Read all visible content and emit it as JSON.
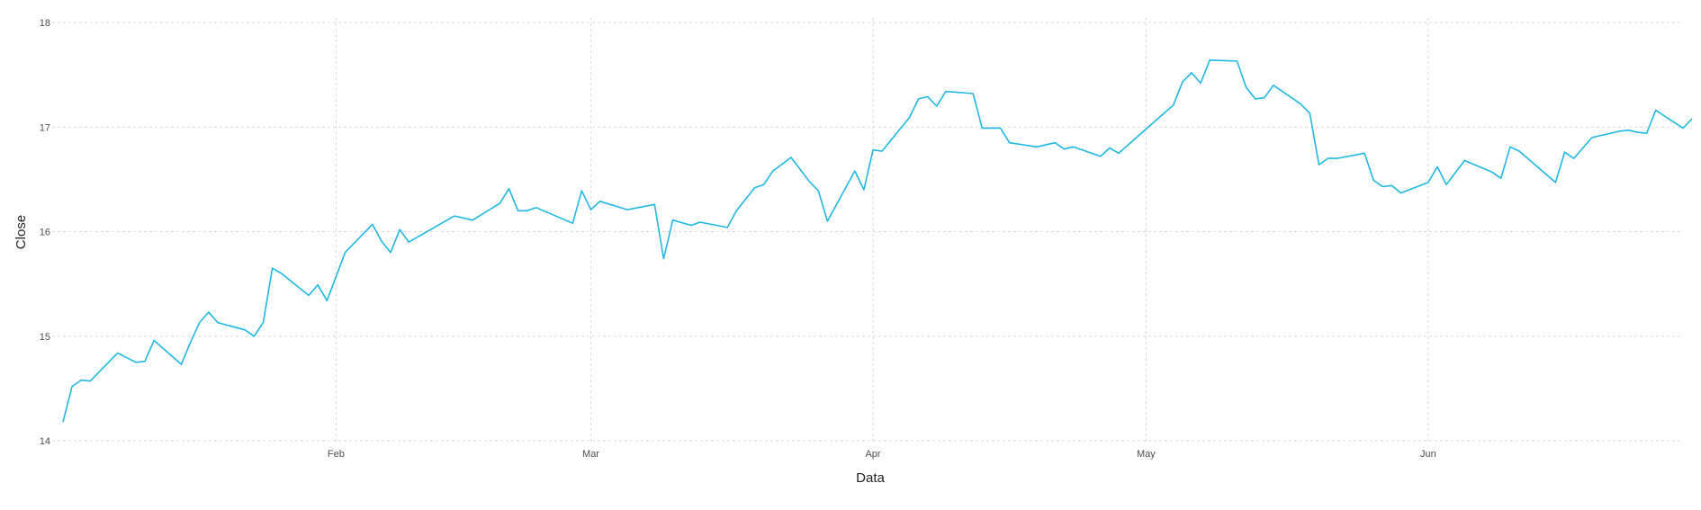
{
  "chart_data": {
    "type": "line",
    "xlabel": "Data",
    "ylabel": "Close",
    "ylim": [
      14,
      18
    ],
    "yticks": [
      "14",
      "15",
      "16",
      "17",
      "18"
    ],
    "xlim": [
      "2018-01-02",
      "2018-06-29"
    ],
    "xticks": [
      {
        "label": "Feb",
        "date": "2018-02-01"
      },
      {
        "label": "Mar",
        "date": "2018-03-01"
      },
      {
        "label": "Apr",
        "date": "2018-04-01"
      },
      {
        "label": "May",
        "date": "2018-05-01"
      },
      {
        "label": "Jun",
        "date": "2018-06-01"
      }
    ],
    "grid": true,
    "line_color": "#1fb8e3",
    "series": [
      {
        "points": [
          [
            "2018-01-02",
            14.18
          ],
          [
            "2018-01-03",
            14.52
          ],
          [
            "2018-01-04",
            14.58
          ],
          [
            "2018-01-05",
            14.57
          ],
          [
            "2018-01-08",
            14.84
          ],
          [
            "2018-01-10",
            14.75
          ],
          [
            "2018-01-11",
            14.76
          ],
          [
            "2018-01-12",
            14.96
          ],
          [
            "2018-01-15",
            14.73
          ],
          [
            "2018-01-16",
            14.94
          ],
          [
            "2018-01-17",
            15.13
          ],
          [
            "2018-01-18",
            15.23
          ],
          [
            "2018-01-19",
            15.13
          ],
          [
            "2018-01-22",
            15.06
          ],
          [
            "2018-01-23",
            15.0
          ],
          [
            "2018-01-24",
            15.13
          ],
          [
            "2018-01-25",
            15.65
          ],
          [
            "2018-01-26",
            15.6
          ],
          [
            "2018-01-29",
            15.39
          ],
          [
            "2018-01-30",
            15.49
          ],
          [
            "2018-01-31",
            15.34
          ],
          [
            "2018-02-01",
            15.57
          ],
          [
            "2018-02-02",
            15.8
          ],
          [
            "2018-02-05",
            16.07
          ],
          [
            "2018-02-06",
            15.91
          ],
          [
            "2018-02-07",
            15.8
          ],
          [
            "2018-02-08",
            16.02
          ],
          [
            "2018-02-09",
            15.9
          ],
          [
            "2018-02-14",
            16.15
          ],
          [
            "2018-02-16",
            16.11
          ],
          [
            "2018-02-19",
            16.27
          ],
          [
            "2018-02-20",
            16.41
          ],
          [
            "2018-02-21",
            16.2
          ],
          [
            "2018-02-22",
            16.2
          ],
          [
            "2018-02-23",
            16.23
          ],
          [
            "2018-02-27",
            16.08
          ],
          [
            "2018-02-28",
            16.39
          ],
          [
            "2018-03-01",
            16.21
          ],
          [
            "2018-03-02",
            16.29
          ],
          [
            "2018-03-05",
            16.21
          ],
          [
            "2018-03-08",
            16.26
          ],
          [
            "2018-03-09",
            15.74
          ],
          [
            "2018-03-10",
            16.11
          ],
          [
            "2018-03-12",
            16.06
          ],
          [
            "2018-03-13",
            16.09
          ],
          [
            "2018-03-16",
            16.04
          ],
          [
            "2018-03-17",
            16.2
          ],
          [
            "2018-03-19",
            16.42
          ],
          [
            "2018-03-20",
            16.45
          ],
          [
            "2018-03-21",
            16.58
          ],
          [
            "2018-03-23",
            16.71
          ],
          [
            "2018-03-25",
            16.48
          ],
          [
            "2018-03-26",
            16.39
          ],
          [
            "2018-03-27",
            16.1
          ],
          [
            "2018-03-30",
            16.58
          ],
          [
            "2018-03-31",
            16.4
          ],
          [
            "2018-04-01",
            16.78
          ],
          [
            "2018-04-02",
            16.77
          ],
          [
            "2018-04-05",
            17.09
          ],
          [
            "2018-04-06",
            17.27
          ],
          [
            "2018-04-07",
            17.29
          ],
          [
            "2018-04-08",
            17.2
          ],
          [
            "2018-04-09",
            17.34
          ],
          [
            "2018-04-12",
            17.32
          ],
          [
            "2018-04-13",
            16.99
          ],
          [
            "2018-04-15",
            16.99
          ],
          [
            "2018-04-16",
            16.85
          ],
          [
            "2018-04-19",
            16.81
          ],
          [
            "2018-04-21",
            16.85
          ],
          [
            "2018-04-22",
            16.79
          ],
          [
            "2018-04-23",
            16.81
          ],
          [
            "2018-04-26",
            16.72
          ],
          [
            "2018-04-27",
            16.8
          ],
          [
            "2018-04-28",
            16.75
          ],
          [
            "2018-05-04",
            17.21
          ],
          [
            "2018-05-05",
            17.43
          ],
          [
            "2018-05-06",
            17.52
          ],
          [
            "2018-05-07",
            17.42
          ],
          [
            "2018-05-08",
            17.64
          ],
          [
            "2018-05-11",
            17.63
          ],
          [
            "2018-05-12",
            17.38
          ],
          [
            "2018-05-13",
            17.27
          ],
          [
            "2018-05-14",
            17.28
          ],
          [
            "2018-05-15",
            17.4
          ],
          [
            "2018-05-18",
            17.22
          ],
          [
            "2018-05-19",
            17.13
          ],
          [
            "2018-05-20",
            16.64
          ],
          [
            "2018-05-21",
            16.7
          ],
          [
            "2018-05-22",
            16.7
          ],
          [
            "2018-05-25",
            16.75
          ],
          [
            "2018-05-26",
            16.49
          ],
          [
            "2018-05-27",
            16.43
          ],
          [
            "2018-05-28",
            16.44
          ],
          [
            "2018-05-29",
            16.37
          ],
          [
            "2018-06-01",
            16.47
          ],
          [
            "2018-06-02",
            16.62
          ],
          [
            "2018-06-03",
            16.45
          ],
          [
            "2018-06-05",
            16.68
          ],
          [
            "2018-06-08",
            16.57
          ],
          [
            "2018-06-09",
            16.51
          ],
          [
            "2018-06-10",
            16.81
          ],
          [
            "2018-06-11",
            16.77
          ],
          [
            "2018-06-15",
            16.47
          ],
          [
            "2018-06-16",
            16.76
          ],
          [
            "2018-06-17",
            16.7
          ],
          [
            "2018-06-19",
            16.9
          ],
          [
            "2018-06-22",
            16.96
          ],
          [
            "2018-06-23",
            16.97
          ],
          [
            "2018-06-24",
            16.95
          ],
          [
            "2018-06-25",
            16.94
          ],
          [
            "2018-06-26",
            17.16
          ],
          [
            "2018-06-29",
            16.99
          ],
          [
            "2018-06-30",
            17.08
          ]
        ]
      }
    ]
  }
}
